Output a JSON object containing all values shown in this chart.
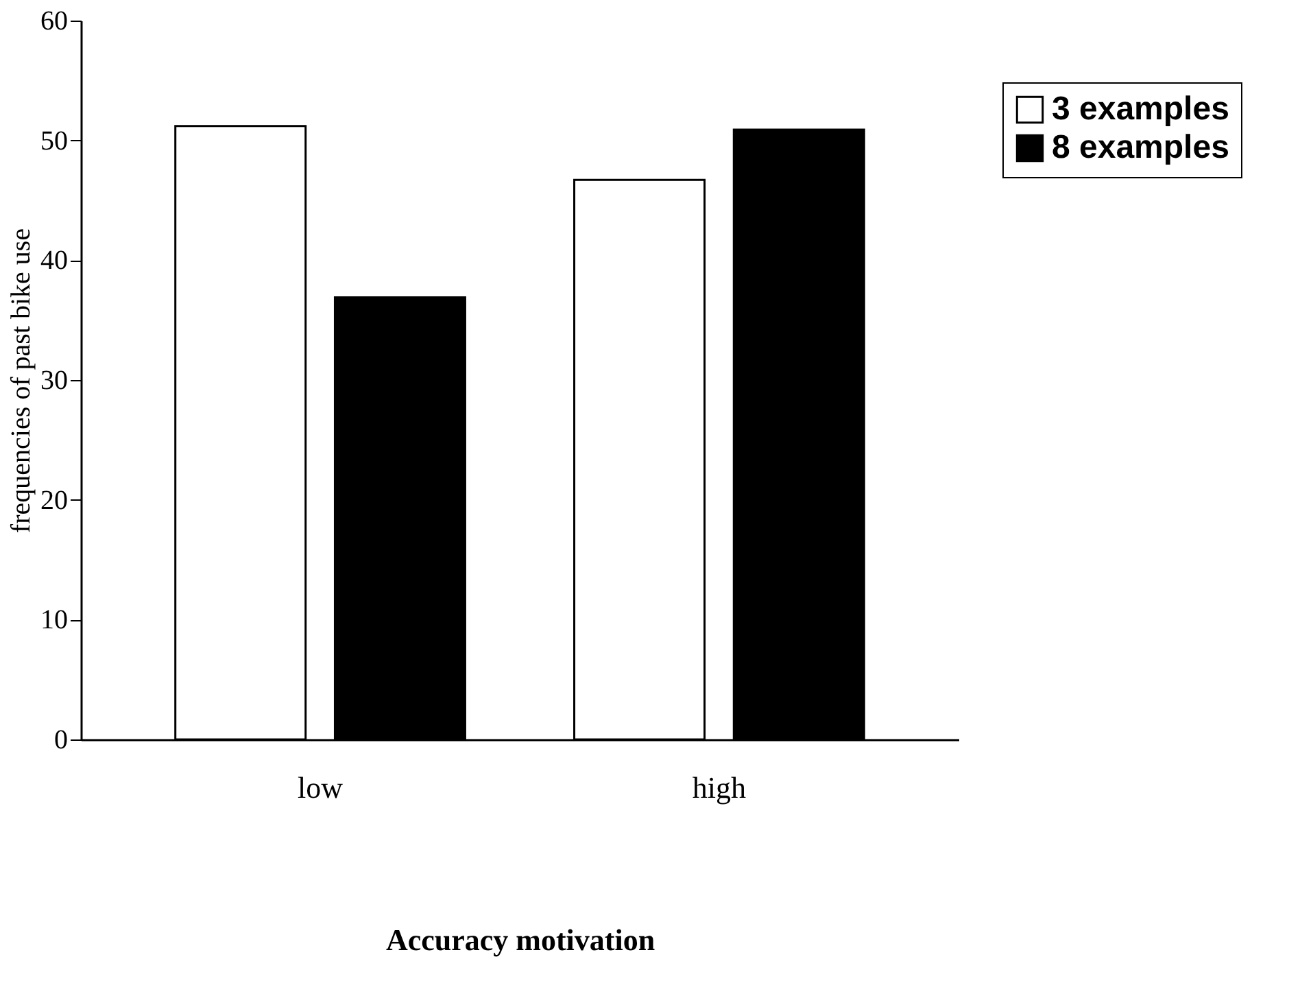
{
  "chart_data": {
    "type": "bar",
    "xlabel": "Accuracy motivation",
    "ylabel": "frequencies of past bike use",
    "categories": [
      "low",
      "high"
    ],
    "series": [
      {
        "name": "3 examples",
        "color": "#ffffff",
        "values": [
          51.2,
          46.7
        ]
      },
      {
        "name": "8 examples",
        "color": "#000000",
        "values": [
          36.9,
          50.9
        ]
      }
    ],
    "ylim": [
      0,
      60
    ],
    "yticks": [
      0,
      10,
      20,
      30,
      40,
      50,
      60
    ],
    "grid": false,
    "legend": "top right"
  }
}
